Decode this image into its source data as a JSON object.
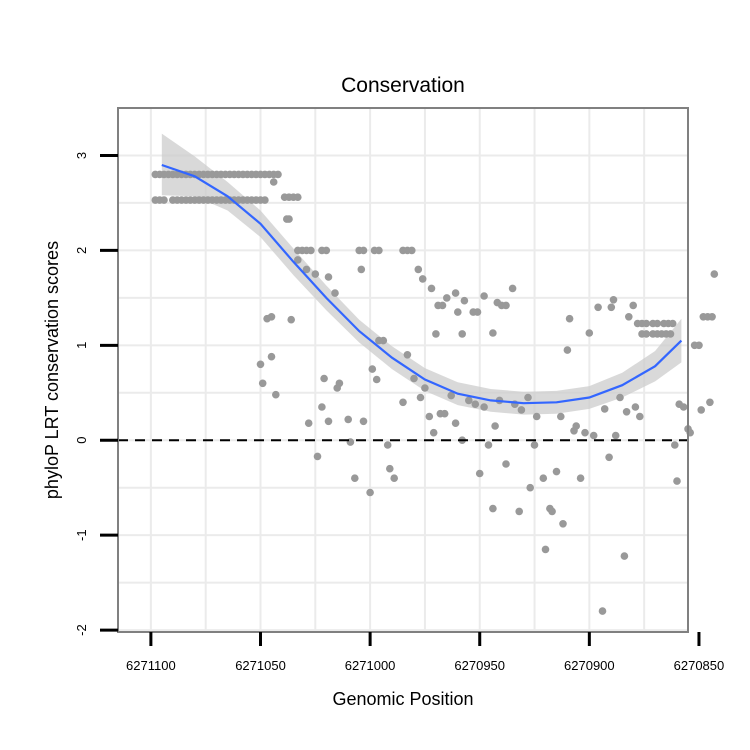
{
  "chart_data": {
    "type": "scatter",
    "title": "Conservation",
    "xlabel": "Genomic Position",
    "ylabel": "phyloP LRT conservation scores",
    "x_reversed": true,
    "xlim": [
      6271115,
      6270855
    ],
    "ylim": [
      -2.02,
      3.5
    ],
    "x_ticks": [
      6271100,
      6271050,
      6271000,
      6270950,
      6270900,
      6270850
    ],
    "x_tick_labels": [
      "6271100",
      "6271050",
      "6271000",
      "6270950",
      "6270900",
      "6270850"
    ],
    "y_ticks": [
      -2,
      -1,
      0,
      1,
      2,
      3
    ],
    "y_tick_labels": [
      "-2",
      "-1",
      "0",
      "1",
      "2",
      "3"
    ],
    "grid": true,
    "reference_line": {
      "y": 0,
      "style": "dashed",
      "color": "#000000"
    },
    "colors": {
      "points": "#999999",
      "fit_line": "#3366ff",
      "ribbon": "#cccccc",
      "panel_border": "#808080"
    },
    "series": [
      {
        "name": "phyloP LRT score",
        "kind": "points",
        "points": [
          [
            6271098,
            2.8
          ],
          [
            6271096,
            2.8
          ],
          [
            6271094,
            2.8
          ],
          [
            6271092,
            2.8
          ],
          [
            6271090,
            2.8
          ],
          [
            6271088,
            2.8
          ],
          [
            6271086,
            2.8
          ],
          [
            6271084,
            2.8
          ],
          [
            6271082,
            2.8
          ],
          [
            6271080,
            2.8
          ],
          [
            6271078,
            2.8
          ],
          [
            6271076,
            2.8
          ],
          [
            6271074,
            2.8
          ],
          [
            6271072,
            2.8
          ],
          [
            6271070,
            2.8
          ],
          [
            6271068,
            2.8
          ],
          [
            6271066,
            2.8
          ],
          [
            6271064,
            2.8
          ],
          [
            6271062,
            2.8
          ],
          [
            6271060,
            2.8
          ],
          [
            6271058,
            2.8
          ],
          [
            6271056,
            2.8
          ],
          [
            6271054,
            2.8
          ],
          [
            6271052,
            2.8
          ],
          [
            6271050,
            2.8
          ],
          [
            6271048,
            2.8
          ],
          [
            6271046,
            2.8
          ],
          [
            6271044,
            2.8
          ],
          [
            6271042,
            2.8
          ],
          [
            6271098,
            2.53
          ],
          [
            6271096,
            2.53
          ],
          [
            6271094,
            2.53
          ],
          [
            6271090,
            2.53
          ],
          [
            6271088,
            2.53
          ],
          [
            6271086,
            2.53
          ],
          [
            6271084,
            2.53
          ],
          [
            6271082,
            2.53
          ],
          [
            6271080,
            2.53
          ],
          [
            6271078,
            2.53
          ],
          [
            6271076,
            2.53
          ],
          [
            6271074,
            2.53
          ],
          [
            6271072,
            2.53
          ],
          [
            6271070,
            2.53
          ],
          [
            6271068,
            2.53
          ],
          [
            6271066,
            2.53
          ],
          [
            6271064,
            2.53
          ],
          [
            6271062,
            2.53
          ],
          [
            6271060,
            2.53
          ],
          [
            6271058,
            2.53
          ],
          [
            6271056,
            2.53
          ],
          [
            6271054,
            2.53
          ],
          [
            6271052,
            2.53
          ],
          [
            6271050,
            2.53
          ],
          [
            6271048,
            2.53
          ],
          [
            6271044,
            2.72
          ],
          [
            6271039,
            2.56
          ],
          [
            6271037,
            2.56
          ],
          [
            6271035,
            2.56
          ],
          [
            6271033,
            2.56
          ],
          [
            6271037,
            2.33
          ],
          [
            6271038,
            2.33
          ],
          [
            6271033,
            2.0
          ],
          [
            6271031,
            2.0
          ],
          [
            6271029,
            2.0
          ],
          [
            6271027,
            2.0
          ],
          [
            6271022,
            2.0
          ],
          [
            6271020,
            2.0
          ],
          [
            6271005,
            2.0
          ],
          [
            6271003,
            2.0
          ],
          [
            6270998,
            2.0
          ],
          [
            6270996,
            2.0
          ],
          [
            6270985,
            2.0
          ],
          [
            6270983,
            2.0
          ],
          [
            6270981,
            2.0
          ],
          [
            6271033,
            1.9
          ],
          [
            6271029,
            1.8
          ],
          [
            6271025,
            1.75
          ],
          [
            6271019,
            1.72
          ],
          [
            6271016,
            1.55
          ],
          [
            6271004,
            1.8
          ],
          [
            6270978,
            1.8
          ],
          [
            6270976,
            1.7
          ],
          [
            6270972,
            1.6
          ],
          [
            6270965,
            1.5
          ],
          [
            6270961,
            1.55
          ],
          [
            6270957,
            1.47
          ],
          [
            6270953,
            1.35
          ],
          [
            6270951,
            1.35
          ],
          [
            6270942,
            1.45
          ],
          [
            6270940,
            1.42
          ],
          [
            6270938,
            1.42
          ],
          [
            6270935,
            1.6
          ],
          [
            6270969,
            1.42
          ],
          [
            6270967,
            1.42
          ],
          [
            6270970,
            1.12
          ],
          [
            6270958,
            1.12
          ],
          [
            6270960,
            1.35
          ],
          [
            6270948,
            1.52
          ],
          [
            6270944,
            1.13
          ],
          [
            6271045,
            1.3
          ],
          [
            6271047,
            1.28
          ],
          [
            6271036,
            1.27
          ],
          [
            6271050,
            0.8
          ],
          [
            6271049,
            0.6
          ],
          [
            6271043,
            0.48
          ],
          [
            6271045,
            0.88
          ],
          [
            6271028,
            0.18
          ],
          [
            6271024,
            -0.17
          ],
          [
            6271022,
            0.35
          ],
          [
            6271021,
            0.65
          ],
          [
            6271019,
            0.2
          ],
          [
            6271015,
            0.55
          ],
          [
            6271014,
            0.6
          ],
          [
            6271010,
            0.22
          ],
          [
            6271009,
            -0.02
          ],
          [
            6271007,
            -0.4
          ],
          [
            6271003,
            0.2
          ],
          [
            6271000,
            -0.55
          ],
          [
            6270999,
            0.75
          ],
          [
            6270997,
            0.64
          ],
          [
            6270996,
            1.05
          ],
          [
            6270994,
            1.05
          ],
          [
            6270992,
            -0.05
          ],
          [
            6270991,
            -0.3
          ],
          [
            6270989,
            -0.4
          ],
          [
            6270985,
            0.4
          ],
          [
            6270983,
            0.9
          ],
          [
            6270980,
            0.65
          ],
          [
            6270977,
            0.45
          ],
          [
            6270975,
            0.55
          ],
          [
            6270973,
            0.25
          ],
          [
            6270971,
            0.08
          ],
          [
            6270968,
            0.28
          ],
          [
            6270966,
            0.28
          ],
          [
            6270963,
            0.47
          ],
          [
            6270961,
            0.18
          ],
          [
            6270958,
            0.0
          ],
          [
            6270955,
            0.42
          ],
          [
            6270952,
            0.38
          ],
          [
            6270950,
            -0.35
          ],
          [
            6270948,
            0.35
          ],
          [
            6270946,
            -0.05
          ],
          [
            6270944,
            -0.72
          ],
          [
            6270943,
            0.15
          ],
          [
            6270941,
            0.42
          ],
          [
            6270938,
            -0.25
          ],
          [
            6270934,
            0.38
          ],
          [
            6270932,
            -0.75
          ],
          [
            6270931,
            0.32
          ],
          [
            6270928,
            0.45
          ],
          [
            6270927,
            -0.5
          ],
          [
            6270925,
            -0.05
          ],
          [
            6270924,
            0.25
          ],
          [
            6270921,
            -0.4
          ],
          [
            6270920,
            -1.15
          ],
          [
            6270918,
            -0.72
          ],
          [
            6270917,
            -0.75
          ],
          [
            6270915,
            -0.33
          ],
          [
            6270913,
            0.25
          ],
          [
            6270912,
            -0.88
          ],
          [
            6270910,
            0.95
          ],
          [
            6270909,
            1.28
          ],
          [
            6270907,
            0.1
          ],
          [
            6270906,
            0.15
          ],
          [
            6270904,
            -0.4
          ],
          [
            6270902,
            0.08
          ],
          [
            6270900,
            1.13
          ],
          [
            6270898,
            0.05
          ],
          [
            6270896,
            1.4
          ],
          [
            6270894,
            -1.8
          ],
          [
            6270893,
            0.33
          ],
          [
            6270891,
            -0.18
          ],
          [
            6270890,
            1.4
          ],
          [
            6270889,
            1.48
          ],
          [
            6270888,
            0.05
          ],
          [
            6270886,
            0.45
          ],
          [
            6270884,
            -1.22
          ],
          [
            6270883,
            0.3
          ],
          [
            6270882,
            1.3
          ],
          [
            6270880,
            1.42
          ],
          [
            6270879,
            0.35
          ],
          [
            6270877,
            0.25
          ],
          [
            6270878,
            1.23
          ],
          [
            6270876,
            1.23
          ],
          [
            6270874,
            1.23
          ],
          [
            6270871,
            1.23
          ],
          [
            6270869,
            1.23
          ],
          [
            6270866,
            1.23
          ],
          [
            6270864,
            1.23
          ],
          [
            6270862,
            1.23
          ],
          [
            6270876,
            1.12
          ],
          [
            6270874,
            1.12
          ],
          [
            6270871,
            1.12
          ],
          [
            6270869,
            1.12
          ],
          [
            6270867,
            1.12
          ],
          [
            6270865,
            1.12
          ],
          [
            6270863,
            1.12
          ],
          [
            6270861,
            -0.05
          ],
          [
            6270860,
            -0.43
          ],
          [
            6270859,
            0.38
          ],
          [
            6270857,
            0.35
          ],
          [
            6270855,
            0.12
          ],
          [
            6270854,
            0.08
          ],
          [
            6270852,
            1.0
          ],
          [
            6270850,
            1.0
          ],
          [
            6270849,
            0.32
          ],
          [
            6270848,
            1.3
          ],
          [
            6270846,
            1.3
          ],
          [
            6270845,
            0.4
          ],
          [
            6270844,
            1.3
          ],
          [
            6270843,
            1.75
          ]
        ]
      },
      {
        "name": "smooth fit",
        "kind": "line",
        "x": [
          6271095,
          6271080,
          6271065,
          6271050,
          6271035,
          6271020,
          6271005,
          6270990,
          6270975,
          6270960,
          6270945,
          6270930,
          6270915,
          6270900,
          6270885,
          6270870,
          6270858
        ],
        "y": [
          2.9,
          2.78,
          2.57,
          2.28,
          1.88,
          1.5,
          1.15,
          0.87,
          0.64,
          0.49,
          0.42,
          0.39,
          0.4,
          0.45,
          0.58,
          0.78,
          1.05
        ],
        "ci_low": [
          2.58,
          2.57,
          2.42,
          2.14,
          1.74,
          1.37,
          1.03,
          0.75,
          0.52,
          0.37,
          0.3,
          0.27,
          0.28,
          0.33,
          0.45,
          0.62,
          0.82
        ],
        "ci_high": [
          3.23,
          2.99,
          2.72,
          2.42,
          2.02,
          1.63,
          1.27,
          0.99,
          0.76,
          0.61,
          0.54,
          0.51,
          0.52,
          0.57,
          0.71,
          0.94,
          1.28
        ]
      }
    ]
  }
}
